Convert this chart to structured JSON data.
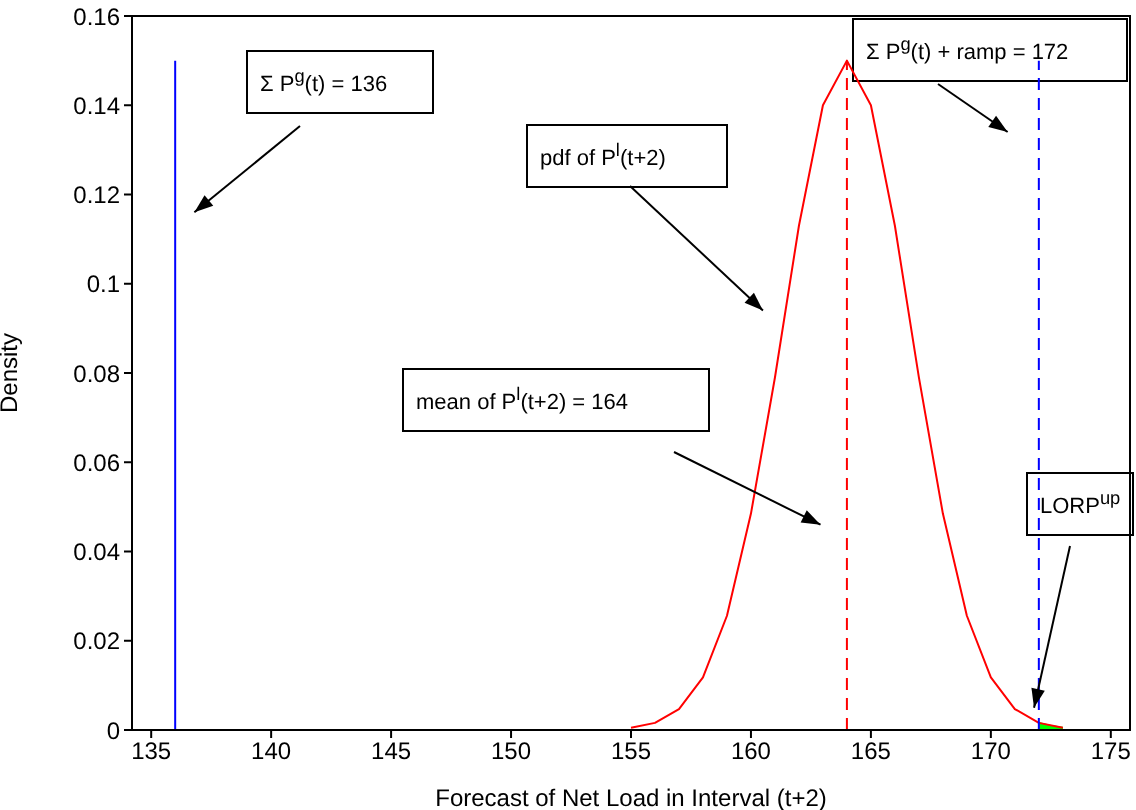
{
  "chart_data": {
    "type": "line",
    "xlabel": "Forecast of Net Load in Interval (t+2)",
    "ylabel": "Density",
    "xlim": [
      134.2,
      175.8
    ],
    "xticks": [
      135,
      140,
      145,
      150,
      155,
      160,
      165,
      170,
      175
    ],
    "ylim": [
      0,
      0.16
    ],
    "yticks": [
      0,
      0.02,
      0.04,
      0.06,
      0.08,
      0.1,
      0.12,
      0.14,
      0.16
    ],
    "grid": false,
    "legend": false,
    "marker": "none",
    "series": [
      {
        "color": "#0000ff",
        "line_style": "solid",
        "x": [
          136,
          136
        ],
        "values": [
          0,
          0.15
        ]
      },
      {
        "color": "#ff0000",
        "line_style": "solid",
        "x": [
          155,
          156,
          157,
          158,
          159,
          160,
          161,
          162,
          163,
          164,
          165,
          166,
          167,
          168,
          169,
          170,
          171,
          172,
          173
        ],
        "values": [
          0.0005,
          0.0016,
          0.0047,
          0.0118,
          0.0256,
          0.0485,
          0.079,
          0.113,
          0.14,
          0.15,
          0.14,
          0.113,
          0.079,
          0.0485,
          0.0256,
          0.0118,
          0.0047,
          0.0016,
          0.0005
        ]
      },
      {
        "color": "#ff0000",
        "line_style": "dashed",
        "x": [
          164,
          164
        ],
        "values": [
          0,
          0.15
        ]
      },
      {
        "color": "#0000ff",
        "line_style": "dashed",
        "x": [
          172,
          172
        ],
        "values": [
          0,
          0.15
        ]
      },
      {
        "type": "area",
        "color": "#00ff00",
        "x": [
          172,
          172.5,
          173
        ],
        "values": [
          0.0016,
          0.0009,
          0.0005
        ]
      }
    ],
    "annotations": [
      "Σ P$^{g}$(t) = 136",
      "pdf of P$^{l}$(t+2)",
      "Σ P$^{g}$(t) + ramp = 172",
      "mean of P$^{l}$(t+2) = 164",
      {
        "text": "LORP$^{up}$",
        "x": 171.8,
        "y": 0.005
      }
    ]
  }
}
